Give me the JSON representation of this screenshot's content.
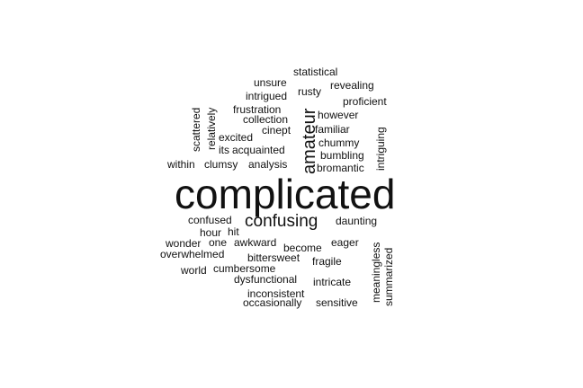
{
  "word_cloud": {
    "text_color": "#111111",
    "background": "#ffffff",
    "words": [
      {
        "text": "complicated",
        "weight": 10,
        "orientation": "horizontal"
      },
      {
        "text": "confusing",
        "weight": 4,
        "orientation": "horizontal"
      },
      {
        "text": "amateur",
        "weight": 4,
        "orientation": "vertical"
      },
      {
        "text": "statistical",
        "weight": 1,
        "orientation": "horizontal"
      },
      {
        "text": "unsure",
        "weight": 1,
        "orientation": "horizontal"
      },
      {
        "text": "revealing",
        "weight": 1,
        "orientation": "horizontal"
      },
      {
        "text": "rusty",
        "weight": 1,
        "orientation": "horizontal"
      },
      {
        "text": "intrigued",
        "weight": 1,
        "orientation": "horizontal"
      },
      {
        "text": "proficient",
        "weight": 1,
        "orientation": "horizontal"
      },
      {
        "text": "frustration",
        "weight": 1,
        "orientation": "horizontal"
      },
      {
        "text": "however",
        "weight": 1,
        "orientation": "horizontal"
      },
      {
        "text": "collection",
        "weight": 1,
        "orientation": "horizontal"
      },
      {
        "text": "cinept",
        "weight": 1,
        "orientation": "horizontal"
      },
      {
        "text": "familiar",
        "weight": 1,
        "orientation": "horizontal"
      },
      {
        "text": "excited",
        "weight": 1,
        "orientation": "horizontal"
      },
      {
        "text": "chummy",
        "weight": 1,
        "orientation": "horizontal"
      },
      {
        "text": "its",
        "weight": 1,
        "orientation": "horizontal"
      },
      {
        "text": "acquainted",
        "weight": 1,
        "orientation": "horizontal"
      },
      {
        "text": "bumbling",
        "weight": 1,
        "orientation": "horizontal"
      },
      {
        "text": "within",
        "weight": 1,
        "orientation": "horizontal"
      },
      {
        "text": "clumsy",
        "weight": 1,
        "orientation": "horizontal"
      },
      {
        "text": "analysis",
        "weight": 1,
        "orientation": "horizontal"
      },
      {
        "text": "bromantic",
        "weight": 1,
        "orientation": "horizontal"
      },
      {
        "text": "scattered",
        "weight": 1,
        "orientation": "vertical"
      },
      {
        "text": "relatively",
        "weight": 1,
        "orientation": "vertical"
      },
      {
        "text": "intriguing",
        "weight": 1,
        "orientation": "vertical"
      },
      {
        "text": "confused",
        "weight": 1,
        "orientation": "horizontal"
      },
      {
        "text": "daunting",
        "weight": 1,
        "orientation": "horizontal"
      },
      {
        "text": "hour",
        "weight": 1,
        "orientation": "horizontal"
      },
      {
        "text": "hit",
        "weight": 1,
        "orientation": "horizontal"
      },
      {
        "text": "wonder",
        "weight": 1,
        "orientation": "horizontal"
      },
      {
        "text": "one",
        "weight": 1,
        "orientation": "horizontal"
      },
      {
        "text": "awkward",
        "weight": 1,
        "orientation": "horizontal"
      },
      {
        "text": "eager",
        "weight": 1,
        "orientation": "horizontal"
      },
      {
        "text": "become",
        "weight": 1,
        "orientation": "horizontal"
      },
      {
        "text": "overwhelmed",
        "weight": 1,
        "orientation": "horizontal"
      },
      {
        "text": "bittersweet",
        "weight": 1,
        "orientation": "horizontal"
      },
      {
        "text": "fragile",
        "weight": 1,
        "orientation": "horizontal"
      },
      {
        "text": "world",
        "weight": 1,
        "orientation": "horizontal"
      },
      {
        "text": "cumbersome",
        "weight": 1,
        "orientation": "horizontal"
      },
      {
        "text": "dysfunctional",
        "weight": 1,
        "orientation": "horizontal"
      },
      {
        "text": "intricate",
        "weight": 1,
        "orientation": "horizontal"
      },
      {
        "text": "inconsistent",
        "weight": 1,
        "orientation": "horizontal"
      },
      {
        "text": "occasionally",
        "weight": 1,
        "orientation": "horizontal"
      },
      {
        "text": "sensitive",
        "weight": 1,
        "orientation": "horizontal"
      },
      {
        "text": "meaningless",
        "weight": 1,
        "orientation": "vertical"
      },
      {
        "text": "summarized",
        "weight": 1,
        "orientation": "vertical"
      }
    ]
  }
}
